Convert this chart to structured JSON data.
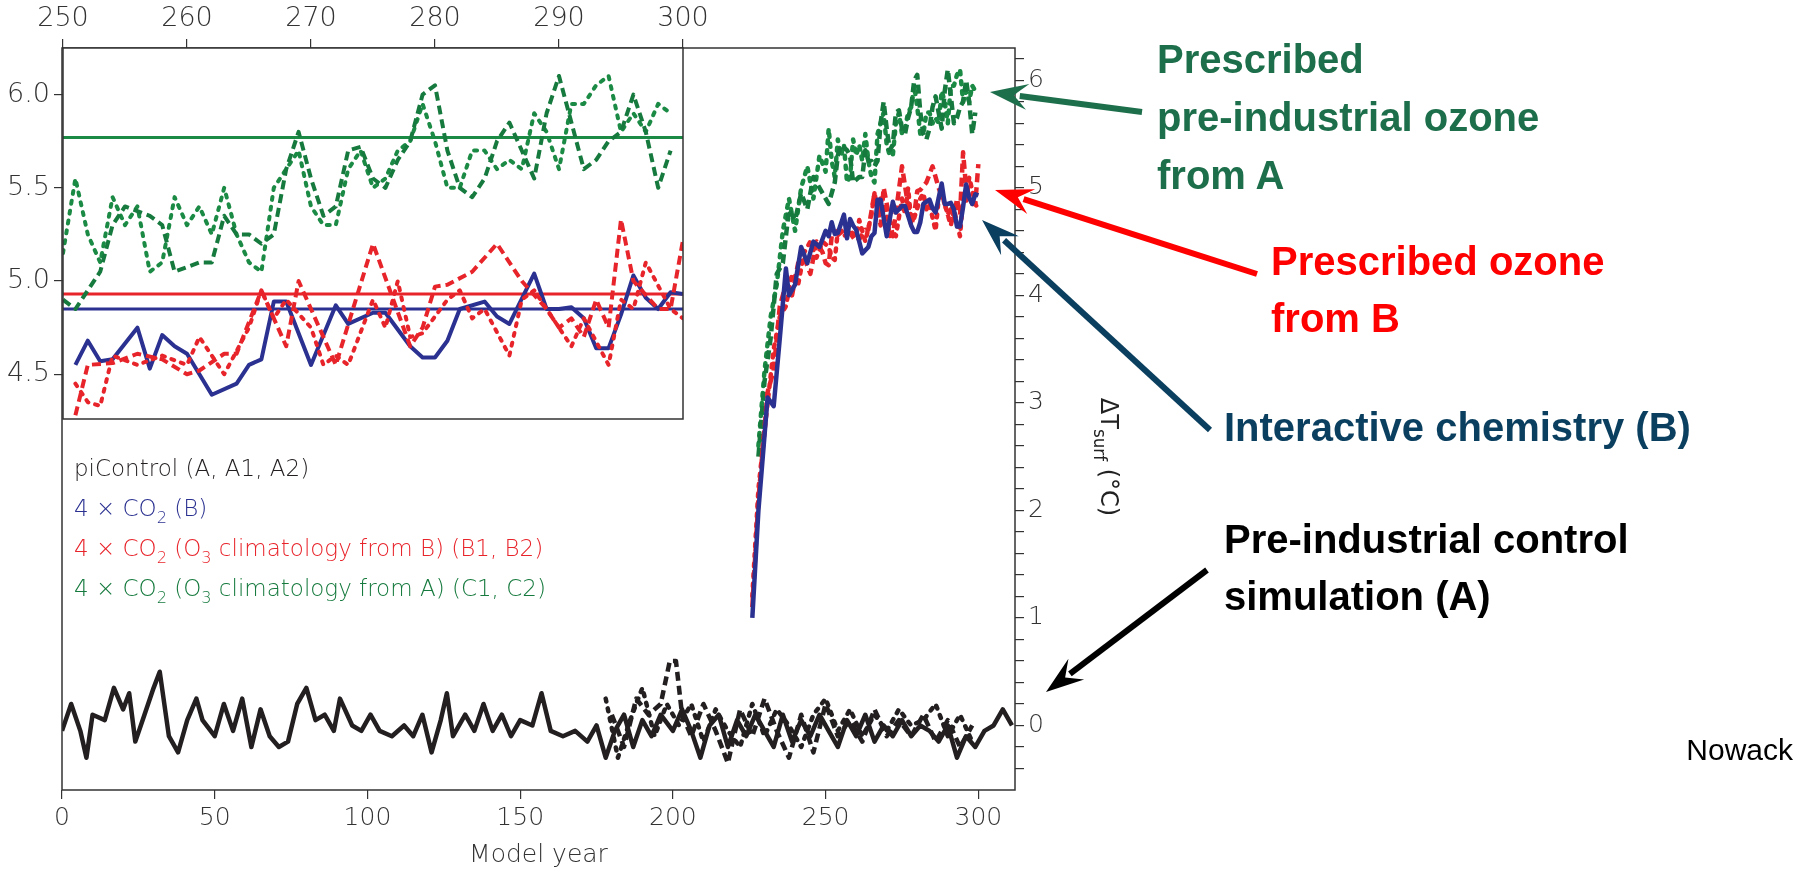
{
  "chart_data": [
    {
      "type": "line",
      "xlabel": "Model year",
      "ylabel": "ΔT$_{surf}$ (°C)",
      "xlim": [
        0,
        312
      ],
      "ylim": [
        -0.6,
        6.3
      ],
      "xticks": [
        0,
        50,
        100,
        150,
        200,
        250,
        300
      ],
      "yticks": [
        {
          "value": -0.4,
          "label": null
        },
        {
          "value": -0.2,
          "label": null
        },
        0,
        {
          "value": 0.2,
          "label": null
        },
        {
          "value": 0.4,
          "label": null
        },
        {
          "value": 0.6,
          "label": null
        },
        {
          "value": 0.8,
          "label": null
        },
        1,
        {
          "value": 1.2,
          "label": null
        },
        {
          "value": 1.4,
          "label": null
        },
        {
          "value": 1.6,
          "label": null
        },
        {
          "value": 1.8,
          "label": null
        },
        2,
        {
          "value": 2.2,
          "label": null
        },
        {
          "value": 2.4,
          "label": null
        },
        {
          "value": 2.6,
          "label": null
        },
        {
          "value": 2.8,
          "label": null
        },
        3,
        {
          "value": 3.2,
          "label": null
        },
        {
          "value": 3.4,
          "label": null
        },
        {
          "value": 3.6,
          "label": null
        },
        {
          "value": 3.8,
          "label": null
        },
        4,
        {
          "value": 4.2,
          "label": null
        },
        {
          "value": 4.4,
          "label": null
        },
        {
          "value": 4.6,
          "label": null
        },
        {
          "value": 4.8,
          "label": null
        },
        5,
        {
          "value": 5.2,
          "label": null
        },
        {
          "value": 5.4,
          "label": null
        },
        {
          "value": 5.6,
          "label": null
        },
        {
          "value": 5.8,
          "label": null
        },
        6,
        {
          "value": 6.2,
          "label": null
        }
      ],
      "grid": false,
      "legend": "left",
      "marker": "none",
      "series": [
        {
          "name": "piControl (A, A1, A2)",
          "color": "#231f20",
          "line_style": "solid",
          "x": [
            0,
            3,
            6,
            8,
            10,
            14,
            17,
            20,
            22,
            24,
            27,
            30,
            32,
            35,
            38,
            41,
            44,
            46,
            50,
            53,
            56,
            59,
            62,
            65,
            68,
            71,
            74,
            77,
            80,
            83,
            86,
            89,
            91,
            95,
            98,
            101,
            104,
            108,
            112,
            115,
            118,
            121,
            124,
            126,
            128,
            132,
            135,
            138,
            141,
            144,
            147,
            150,
            154,
            157,
            160,
            164,
            168,
            172,
            175,
            178,
            181,
            184,
            187,
            190,
            193,
            196,
            200,
            203,
            206,
            209,
            212,
            215,
            218,
            221,
            224,
            227,
            230,
            233,
            236,
            239,
            242,
            245,
            248,
            251,
            254,
            257,
            260,
            263,
            266,
            269,
            272,
            275,
            278,
            281,
            284,
            287,
            290,
            293,
            296,
            299,
            302,
            305,
            308,
            311
          ],
          "values": [
            -0.05,
            0.2,
            -0.05,
            -0.3,
            0.1,
            0.05,
            0.35,
            0.15,
            0.3,
            -0.15,
            0.1,
            0.35,
            0.5,
            -0.1,
            -0.25,
            0.05,
            0.25,
            0.05,
            -0.1,
            0.2,
            -0.05,
            0.25,
            -0.2,
            0.15,
            -0.1,
            -0.2,
            -0.15,
            0.2,
            0.35,
            0.05,
            0.1,
            -0.05,
            0.25,
            0.0,
            -0.05,
            0.1,
            -0.05,
            -0.1,
            0.0,
            -0.1,
            0.1,
            -0.25,
            0.05,
            0.3,
            -0.1,
            0.1,
            -0.05,
            0.2,
            -0.05,
            0.1,
            -0.1,
            0.05,
            0.0,
            0.3,
            -0.05,
            -0.1,
            -0.05,
            -0.15,
            0.0,
            -0.3,
            -0.05,
            0.1,
            -0.2,
            0.05,
            -0.1,
            0.1,
            -0.05,
            0.15,
            -0.05,
            -0.3,
            0.0,
            0.1,
            -0.2,
            0.05,
            -0.1,
            0.1,
            -0.05,
            -0.2,
            0.1,
            -0.15,
            0.05,
            -0.1,
            0.1,
            -0.05,
            -0.2,
            0.05,
            -0.1,
            0.1,
            -0.15,
            0.0,
            -0.1,
            0.05,
            -0.1,
            0.0,
            -0.05,
            -0.15,
            0.0,
            -0.3,
            -0.1,
            -0.2,
            -0.05,
            0.0,
            0.15,
            0.0
          ]
        },
        {
          "color": "#231f20",
          "line_style": "dashed",
          "x": [
            180,
            184,
            188,
            192,
            196,
            199,
            201,
            203,
            206,
            210,
            214,
            218,
            222,
            226,
            230,
            234,
            238,
            242,
            246,
            250,
            254,
            258,
            262,
            266,
            270,
            274,
            278,
            282,
            286,
            290,
            294,
            298
          ],
          "values": [
            0.1,
            -0.2,
            0.25,
            0.1,
            0.2,
            0.6,
            0.6,
            0.1,
            -0.1,
            0.2,
            -0.05,
            -0.35,
            0.15,
            -0.1,
            0.25,
            -0.05,
            -0.3,
            0.1,
            -0.25,
            0.2,
            -0.1,
            0.05,
            -0.15,
            0.15,
            -0.1,
            0.05,
            -0.1,
            0.1,
            -0.15,
            0.05,
            -0.2,
            0.0
          ]
        },
        {
          "color": "#231f20",
          "line_style": "dotted",
          "x": [
            178,
            182,
            186,
            190,
            194,
            198,
            202,
            206,
            210,
            214,
            218,
            222,
            226,
            230,
            234,
            238,
            242,
            246,
            250,
            254,
            258,
            262,
            266,
            270,
            274,
            278,
            282,
            286,
            290,
            294,
            298
          ],
          "values": [
            0.25,
            -0.3,
            0.05,
            0.35,
            -0.1,
            0.2,
            0.0,
            0.2,
            -0.15,
            0.15,
            -0.05,
            -0.2,
            0.2,
            -0.1,
            0.15,
            0.0,
            -0.2,
            0.1,
            0.25,
            -0.05,
            0.15,
            -0.1,
            0.1,
            -0.05,
            0.15,
            0.0,
            0.05,
            0.2,
            -0.1,
            0.1,
            -0.15
          ]
        },
        {
          "name": "4 × CO$_{2}$ (B)",
          "color": "#2b3190",
          "line_style": "solid",
          "x": [
            226,
            228,
            231,
            233,
            235,
            237,
            238,
            240,
            242,
            244,
            246,
            248,
            250,
            251,
            252,
            253,
            254,
            256,
            257,
            258,
            259,
            260,
            262,
            264,
            265,
            266,
            267,
            268,
            270,
            272,
            273,
            275,
            276,
            278,
            279,
            280,
            281,
            282,
            284,
            285,
            286,
            288,
            289,
            290,
            291,
            292,
            293,
            294,
            295,
            296,
            297,
            298,
            299,
            300
          ],
          "values": [
            1.0,
            2.0,
            3.05,
            2.97,
            3.6,
            4.25,
            4.0,
            4.1,
            4.45,
            4.3,
            4.5,
            4.45,
            4.6,
            4.55,
            4.68,
            4.57,
            4.58,
            4.75,
            4.53,
            4.71,
            4.65,
            4.61,
            4.39,
            4.45,
            4.55,
            4.58,
            4.89,
            4.89,
            4.55,
            4.87,
            4.77,
            4.83,
            4.83,
            4.65,
            4.59,
            4.59,
            4.68,
            4.85,
            4.89,
            4.81,
            4.77,
            5.04,
            4.85,
            4.85,
            4.86,
            4.8,
            4.64,
            4.64,
            4.82,
            5.03,
            4.91,
            4.85,
            4.94,
            4.93
          ]
        },
        {
          "name": "4 × CO$_{2}$ (O$_{3}$ climatology from B) (B1, B2)",
          "color": "#e8242b",
          "line_style": "dashed",
          "x": [
            226,
            228,
            231,
            233,
            235,
            237,
            239,
            241,
            243,
            245,
            247,
            249,
            250,
            251,
            252,
            254,
            256,
            258,
            260,
            261,
            263,
            264,
            266,
            268,
            269,
            272,
            275,
            278,
            279,
            280,
            281,
            283,
            285,
            287,
            289,
            290,
            291,
            292,
            293,
            294,
            295,
            296,
            298,
            299,
            300
          ],
          "values": [
            1.1,
            2.1,
            3.1,
            3.3,
            3.9,
            4.1,
            4.0,
            4.3,
            4.35,
            4.2,
            4.5,
            4.4,
            4.3,
            4.28,
            4.55,
            4.56,
            4.61,
            4.58,
            4.5,
            4.52,
            4.61,
            4.61,
            4.95,
            4.65,
            5.0,
            4.55,
            5.2,
            4.65,
            4.75,
            4.97,
            4.98,
            5.05,
            5.2,
            5.0,
            4.85,
            4.75,
            4.8,
            4.7,
            4.9,
            4.75,
            5.33,
            5.0,
            4.85,
            4.85,
            5.22
          ]
        },
        {
          "color": "#e8242b",
          "line_style": "dotted",
          "x": [
            226,
            228,
            231,
            233,
            235,
            237,
            239,
            241,
            243,
            245,
            247,
            249,
            251,
            252,
            253,
            254,
            256,
            258,
            260,
            261,
            263,
            265,
            266,
            267,
            268,
            270,
            271,
            272,
            273,
            275,
            276,
            277,
            278,
            279,
            281,
            282,
            283,
            284,
            286,
            287,
            288,
            289,
            290,
            291,
            292,
            294,
            295,
            296,
            297,
            299,
            300
          ],
          "values": [
            1.2,
            2.2,
            3.0,
            3.5,
            3.8,
            3.9,
            4.2,
            4.1,
            4.4,
            4.5,
            4.35,
            4.5,
            4.45,
            4.35,
            4.33,
            4.6,
            4.55,
            4.6,
            4.55,
            4.7,
            4.5,
            4.75,
            4.95,
            4.8,
            4.9,
            4.75,
            4.55,
            4.6,
            4.55,
            4.9,
            4.75,
            5.0,
            4.7,
            4.72,
            4.9,
            4.95,
            4.8,
            4.85,
            4.6,
            4.9,
            4.95,
            4.85,
            4.75,
            4.65,
            4.8,
            4.55,
            4.9,
            4.85,
            5.1,
            4.85,
            4.8
          ]
        },
        {
          "name": "4 × CO$_{2}$ (O$_{3}$ climatology from A) (C1, C2)",
          "color": "#167a3e",
          "line_style": "dashed",
          "x": [
            228,
            230,
            232,
            234,
            236,
            238,
            240,
            242,
            244,
            246,
            248,
            250,
            251,
            253,
            254,
            255,
            257,
            258,
            259,
            261,
            262,
            263,
            264,
            265,
            266,
            267,
            268,
            269,
            270,
            271,
            272,
            273,
            274,
            275,
            276,
            277,
            278,
            279,
            280,
            281,
            282,
            283,
            284,
            285,
            286,
            287,
            288,
            289,
            290,
            291,
            292,
            293,
            294,
            295,
            296,
            297,
            298,
            299
          ],
          "values": [
            2.5,
            3.2,
            3.6,
            4.2,
            4.3,
            4.8,
            4.7,
            4.95,
            4.8,
            5.1,
            5.0,
            4.9,
            4.85,
            5.05,
            5.3,
            5.4,
            5.35,
            5.3,
            5.05,
            5.1,
            5.1,
            5.35,
            5.25,
            5.25,
            5.2,
            5.25,
            5.6,
            5.8,
            5.55,
            5.35,
            5.4,
            5.7,
            5.72,
            5.55,
            5.5,
            5.65,
            5.75,
            6.0,
            6.05,
            5.7,
            5.5,
            5.45,
            5.55,
            5.75,
            5.85,
            5.7,
            5.55,
            5.9,
            6.1,
            5.85,
            5.6,
            5.65,
            5.75,
            5.8,
            6.0,
            5.8,
            5.5,
            5.7
          ]
        },
        {
          "color": "#1b8a44",
          "line_style": "dotted",
          "x": [
            228,
            230,
            232,
            234,
            236,
            238,
            240,
            242,
            244,
            246,
            248,
            250,
            251,
            252,
            253,
            254,
            255,
            256,
            257,
            258,
            259,
            260,
            261,
            262,
            263,
            264,
            265,
            266,
            267,
            268,
            269,
            270,
            271,
            272,
            273,
            274,
            275,
            276,
            277,
            278,
            279,
            280,
            281,
            282,
            283,
            284,
            285,
            286,
            287,
            288,
            289,
            290,
            291,
            292,
            293,
            294,
            295,
            296,
            297,
            298,
            299
          ],
          "values": [
            2.6,
            3.3,
            3.8,
            4.1,
            4.6,
            4.9,
            4.6,
            5.0,
            5.2,
            4.9,
            5.3,
            5.15,
            5.55,
            5.25,
            5.1,
            5.45,
            5.3,
            5.4,
            5.05,
            5.1,
            5.45,
            5.3,
            5.4,
            5.25,
            5.5,
            5.25,
            5.1,
            5.05,
            5.5,
            5.6,
            5.7,
            5.4,
            5.3,
            5.3,
            5.6,
            5.7,
            5.5,
            5.55,
            5.7,
            5.75,
            5.95,
            5.75,
            5.5,
            5.5,
            5.7,
            5.7,
            5.6,
            5.65,
            5.6,
            5.9,
            5.8,
            5.6,
            5.95,
            5.95,
            6.05,
            6.1,
            5.8,
            5.9,
            5.8,
            5.95,
            5.9
          ]
        }
      ],
      "annotations": [
        "Prescribed\npre-industrial ozone\nfrom A",
        "Prescribed ozone\nfrom B",
        "Interactive chemistry (B)",
        "Pre-industrial control\nsimulation (A)",
        "Nowack"
      ]
    },
    {
      "type": "line",
      "xlim": [
        250,
        300
      ],
      "ylim": [
        4.26,
        6.25
      ],
      "xticks": [
        250,
        260,
        270,
        280,
        290,
        300
      ],
      "yticks": [
        4.5,
        {
          "value": 5.0,
          "label": "5.0"
        },
        5.5,
        {
          "value": 6.0,
          "label": "6.0"
        }
      ],
      "grid": false,
      "marker": "none",
      "ref_lines": [
        {
          "axis": "y",
          "value": 5.77,
          "color": "#1b8a44"
        },
        {
          "axis": "y",
          "value": 4.93,
          "color": "#e8242b"
        },
        {
          "axis": "y",
          "value": 4.85,
          "color": "#2b3190"
        }
      ],
      "series": [
        {
          "color": "#e8242b",
          "line_style": "dashed",
          "x": [
            251,
            252,
            254,
            256,
            258,
            260,
            261,
            263,
            264,
            266,
            268,
            269,
            272,
            275,
            278,
            279,
            280,
            281,
            283,
            285,
            287,
            289,
            290,
            291,
            292,
            293,
            294,
            295,
            296,
            298,
            299,
            300
          ],
          "values": [
            4.28,
            4.55,
            4.56,
            4.61,
            4.58,
            4.5,
            4.52,
            4.61,
            4.61,
            4.95,
            4.65,
            5.0,
            4.55,
            5.2,
            4.65,
            4.75,
            4.97,
            4.98,
            5.05,
            5.2,
            5.0,
            4.85,
            4.75,
            4.8,
            4.7,
            4.9,
            4.75,
            5.33,
            5.0,
            4.85,
            4.85,
            5.22
          ]
        },
        {
          "color": "#e8242b",
          "line_style": "dotted",
          "x": [
            251,
            252,
            253,
            254,
            256,
            258,
            260,
            261,
            263,
            265,
            266,
            267,
            268,
            270,
            271,
            272,
            273,
            275,
            276,
            277,
            278,
            279,
            281,
            282,
            283,
            284,
            286,
            287,
            288,
            289,
            290,
            291,
            292,
            294,
            295,
            296,
            297,
            299,
            300
          ],
          "values": [
            4.45,
            4.35,
            4.33,
            4.6,
            4.55,
            4.6,
            4.55,
            4.7,
            4.5,
            4.75,
            4.95,
            4.8,
            4.9,
            4.75,
            4.55,
            4.6,
            4.55,
            4.9,
            4.75,
            5.0,
            4.7,
            4.72,
            4.9,
            4.95,
            4.8,
            4.85,
            4.6,
            4.9,
            4.95,
            4.85,
            4.75,
            4.65,
            4.8,
            4.55,
            4.9,
            4.85,
            5.1,
            4.85,
            4.8
          ]
        },
        {
          "color": "#167a3e",
          "line_style": "dashed",
          "x": [
            250,
            251,
            253,
            254,
            255,
            257,
            258,
            259,
            261,
            262,
            263,
            264,
            265,
            266,
            267,
            268,
            269,
            270,
            271,
            272,
            273,
            274,
            275,
            276,
            277,
            278,
            279,
            280,
            281,
            282,
            283,
            284,
            285,
            286,
            287,
            288,
            289,
            290,
            291,
            292,
            293,
            294,
            295,
            296,
            297,
            298,
            299
          ],
          "values": [
            4.9,
            4.85,
            5.05,
            5.3,
            5.4,
            5.35,
            5.3,
            5.05,
            5.1,
            5.1,
            5.35,
            5.25,
            5.25,
            5.2,
            5.25,
            5.6,
            5.8,
            5.55,
            5.35,
            5.4,
            5.7,
            5.72,
            5.55,
            5.5,
            5.65,
            5.75,
            6.0,
            6.05,
            5.7,
            5.5,
            5.45,
            5.55,
            5.75,
            5.85,
            5.7,
            5.55,
            5.9,
            6.1,
            5.85,
            5.6,
            5.65,
            5.75,
            5.8,
            6.0,
            5.8,
            5.5,
            5.7
          ]
        },
        {
          "color": "#1b8a44",
          "line_style": "dotted",
          "x": [
            250,
            251,
            252,
            253,
            254,
            255,
            256,
            257,
            258,
            259,
            260,
            261,
            262,
            263,
            264,
            265,
            266,
            267,
            268,
            269,
            270,
            271,
            272,
            273,
            274,
            275,
            276,
            277,
            278,
            279,
            280,
            281,
            282,
            283,
            284,
            285,
            286,
            287,
            288,
            289,
            290,
            291,
            292,
            293,
            294,
            295,
            296,
            297,
            298,
            299
          ],
          "values": [
            5.15,
            5.55,
            5.25,
            5.1,
            5.45,
            5.3,
            5.4,
            5.05,
            5.1,
            5.45,
            5.3,
            5.4,
            5.25,
            5.5,
            5.25,
            5.1,
            5.05,
            5.5,
            5.6,
            5.7,
            5.4,
            5.3,
            5.3,
            5.6,
            5.7,
            5.5,
            5.55,
            5.7,
            5.75,
            5.95,
            5.75,
            5.5,
            5.5,
            5.7,
            5.7,
            5.6,
            5.65,
            5.6,
            5.9,
            5.8,
            5.6,
            5.95,
            5.95,
            6.05,
            6.1,
            5.8,
            5.9,
            5.8,
            5.95,
            5.9
          ]
        },
        {
          "color": "#2b3190",
          "line_style": "solid",
          "x": [
            251,
            252,
            253,
            254,
            256,
            257,
            258,
            259,
            260,
            262,
            264,
            265,
            266,
            267,
            268,
            270,
            272,
            273,
            275,
            276,
            278,
            279,
            280,
            281,
            282,
            284,
            285,
            286,
            288,
            289,
            290,
            291,
            292,
            293,
            294,
            295,
            296,
            297,
            298,
            299,
            300
          ],
          "values": [
            4.55,
            4.68,
            4.57,
            4.58,
            4.75,
            4.53,
            4.71,
            4.65,
            4.61,
            4.39,
            4.45,
            4.55,
            4.58,
            4.89,
            4.89,
            4.55,
            4.87,
            4.77,
            4.83,
            4.83,
            4.65,
            4.59,
            4.59,
            4.68,
            4.85,
            4.89,
            4.81,
            4.77,
            5.04,
            4.85,
            4.85,
            4.86,
            4.8,
            4.64,
            4.64,
            4.82,
            5.03,
            4.91,
            4.85,
            4.94,
            4.93
          ]
        }
      ]
    }
  ]
}
